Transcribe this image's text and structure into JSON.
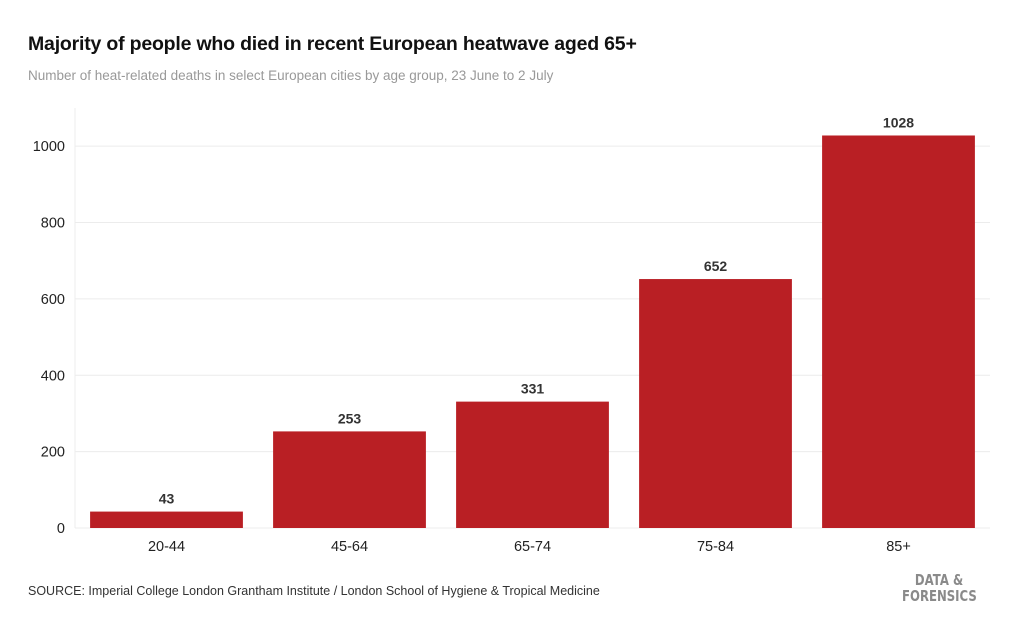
{
  "chart_data": {
    "type": "bar",
    "title": "Majority of people who died in recent European heatwave aged 65+",
    "subtitle": "Number of heat-related deaths in select European cities by age group, 23 June to 2 July",
    "categories": [
      "20-44",
      "45-64",
      "65-74",
      "75-84",
      "85+"
    ],
    "values": [
      43,
      253,
      331,
      652,
      1028
    ],
    "xlabel": "",
    "ylabel": "",
    "ylim": [
      0,
      1100
    ],
    "yticks": [
      0,
      200,
      400,
      600,
      800,
      1000
    ],
    "grid": true,
    "bar_color": "#b91f24",
    "source": "SOURCE: Imperial College London Grantham Institute / London School of Hygiene & Tropical Medicine"
  },
  "logo": "DATA & FORENSICS"
}
